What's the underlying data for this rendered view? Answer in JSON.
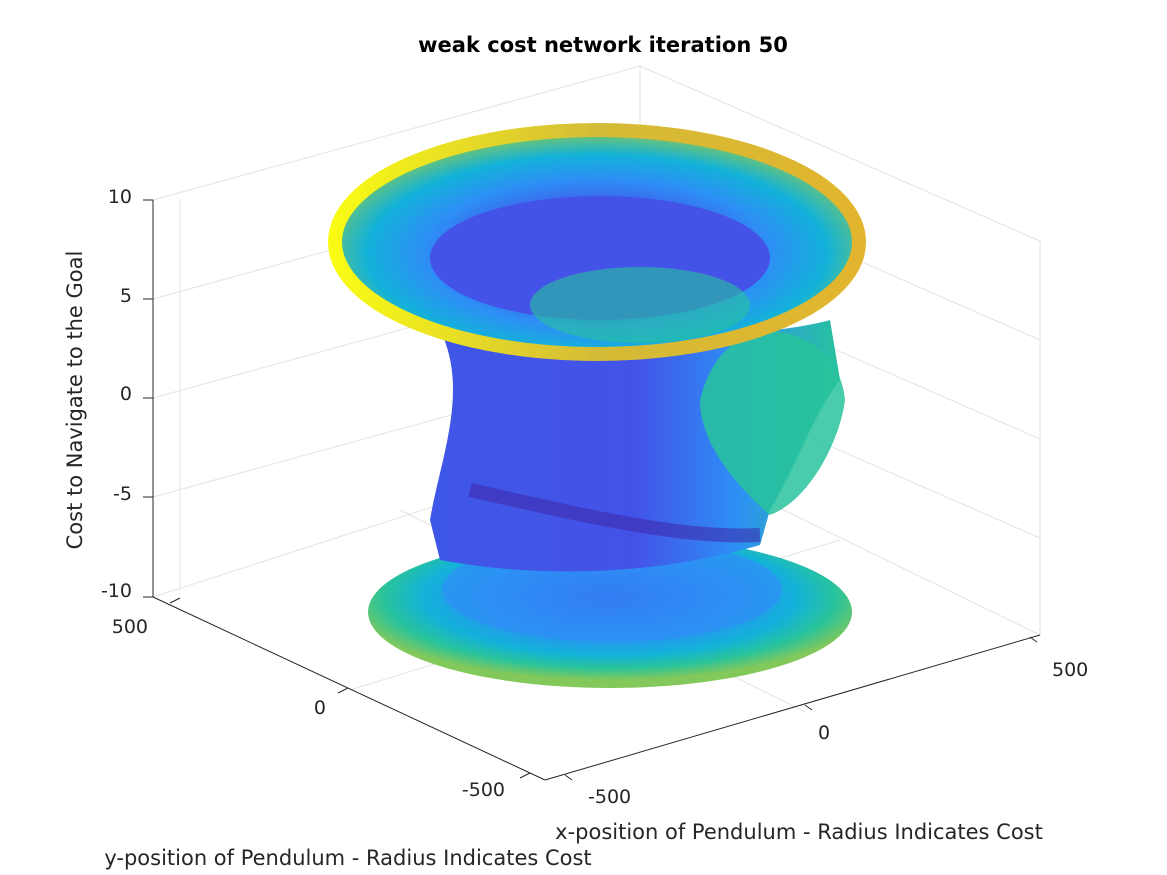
{
  "chart_data": {
    "type": "surface3d",
    "title": "weak cost network iteration 50",
    "xlabel": "x-position of Pendulum - Radius Indicates Cost",
    "ylabel": "y-position of Pendulum - Radius Indicates Cost",
    "zlabel": "Cost to Navigate to the Goal",
    "xticks": [
      "-500",
      "0",
      "500"
    ],
    "yticks": [
      "-500",
      "0",
      "500"
    ],
    "zticks": [
      "-10",
      "-5",
      "0",
      "5",
      "10"
    ],
    "xlim": [
      -500,
      500
    ],
    "ylim": [
      -500,
      500
    ],
    "zlim": [
      -10,
      10
    ],
    "grid": true,
    "colormap": "parula",
    "colormap_colors": [
      "#3e26a8",
      "#4353e8",
      "#2d8ff5",
      "#13b2d9",
      "#28c39c",
      "#83c85a",
      "#d4bb37",
      "#fbda24",
      "#f9fb15"
    ],
    "surface_description_levels": {
      "z_values": [
        -10,
        -8,
        -6,
        -4,
        -2,
        0,
        2,
        4,
        6,
        8,
        10
      ],
      "approx_radius": [
        420,
        400,
        330,
        250,
        240,
        245,
        255,
        260,
        300,
        420,
        440
      ]
    }
  }
}
